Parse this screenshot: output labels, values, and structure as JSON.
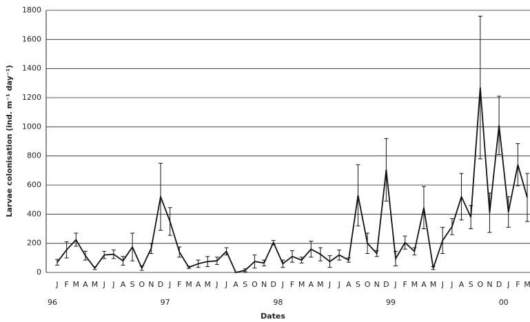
{
  "chart_data": {
    "type": "line",
    "y_label": "Larvae colonisation (ind. m⁻¹ day⁻¹)",
    "x_label": "Dates",
    "categories": [
      "J",
      "F",
      "M",
      "A",
      "M",
      "J",
      "J",
      "A",
      "S",
      "O",
      "N",
      "D",
      "J",
      "F",
      "M",
      "A",
      "M",
      "J",
      "J",
      "A",
      "S",
      "O",
      "N",
      "D",
      "J",
      "F",
      "M",
      "A",
      "M",
      "J",
      "J",
      "A",
      "S",
      "O",
      "N",
      "D",
      "J",
      "F",
      "M",
      "A",
      "M",
      "J",
      "J",
      "A",
      "S",
      "O",
      "N",
      "D",
      "J",
      "F",
      "M"
    ],
    "year_labels": [
      "96",
      "97",
      "98",
      "99",
      "00"
    ],
    "series": [
      {
        "color": "#111111",
        "values": [
          70,
          155,
          225,
          115,
          30,
          120,
          125,
          80,
          175,
          30,
          165,
          520,
          350,
          140,
          35,
          60,
          75,
          80,
          145,
          0,
          15,
          75,
          65,
          205,
          60,
          110,
          85,
          160,
          125,
          75,
          120,
          85,
          530,
          200,
          130,
          705,
          95,
          205,
          145,
          445,
          30,
          220,
          315,
          520,
          380,
          1270,
          410,
          1010,
          415,
          740,
          515
        ],
        "errors": [
          20,
          55,
          45,
          30,
          10,
          25,
          30,
          30,
          95,
          15,
          35,
          230,
          95,
          35,
          8,
          25,
          35,
          25,
          25,
          0,
          10,
          45,
          20,
          15,
          25,
          40,
          20,
          55,
          45,
          40,
          35,
          15,
          210,
          70,
          20,
          215,
          50,
          45,
          25,
          145,
          10,
          90,
          55,
          160,
          80,
          490,
          135,
          200,
          105,
          145,
          165
        ]
      }
    ],
    "ylim": [
      0,
      1800
    ],
    "yticks": [
      0,
      200,
      400,
      600,
      800,
      1000,
      1200,
      1400,
      1600,
      1800
    ],
    "grid": true
  }
}
